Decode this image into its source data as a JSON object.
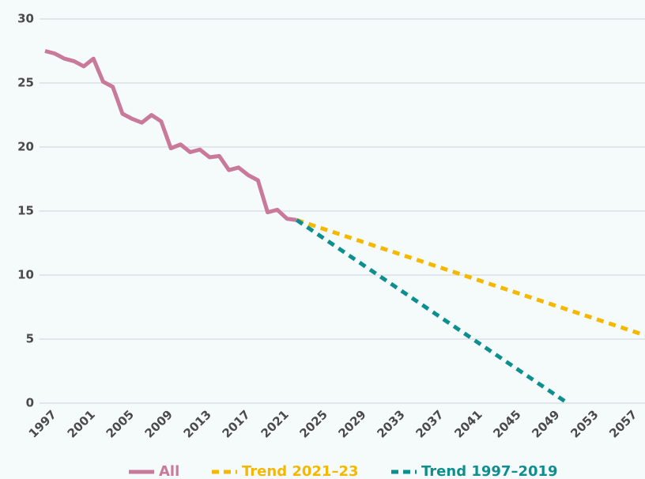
{
  "chart_data": {
    "type": "line",
    "xlim": [
      1997,
      2059
    ],
    "xticks": [
      1997,
      2001,
      2005,
      2009,
      2013,
      2017,
      2021,
      2025,
      2029,
      2033,
      2037,
      2041,
      2045,
      2049,
      2053,
      2057
    ],
    "ylim": [
      0,
      30
    ],
    "yticks": [
      0,
      5,
      10,
      15,
      20,
      25,
      30
    ],
    "grid": true,
    "legend": "bottom",
    "series": [
      {
        "name": "All",
        "color": "#c9799a",
        "style": "solid",
        "x": [
          1997,
          1998,
          1999,
          2000,
          2001,
          2002,
          2003,
          2004,
          2005,
          2006,
          2007,
          2008,
          2009,
          2010,
          2011,
          2012,
          2013,
          2014,
          2015,
          2016,
          2017,
          2018,
          2019,
          2020,
          2021,
          2022,
          2023
        ],
        "values": [
          27.5,
          27.3,
          26.9,
          26.7,
          26.3,
          26.9,
          25.1,
          24.7,
          22.6,
          22.2,
          21.9,
          22.5,
          22.0,
          19.9,
          20.2,
          19.6,
          19.8,
          19.2,
          19.3,
          18.2,
          18.4,
          17.8,
          17.4,
          14.9,
          15.1,
          14.4,
          14.3
        ]
      },
      {
        "name": "Trend 2021–23",
        "color": "#f5b800",
        "style": "dashed",
        "x": [
          2023,
          2059
        ],
        "values": [
          14.3,
          5.3
        ]
      },
      {
        "name": "Trend 1997–2019",
        "color": "#0e8f8f",
        "style": "dashed",
        "x": [
          2023,
          2051
        ],
        "values": [
          14.3,
          0
        ]
      }
    ]
  }
}
